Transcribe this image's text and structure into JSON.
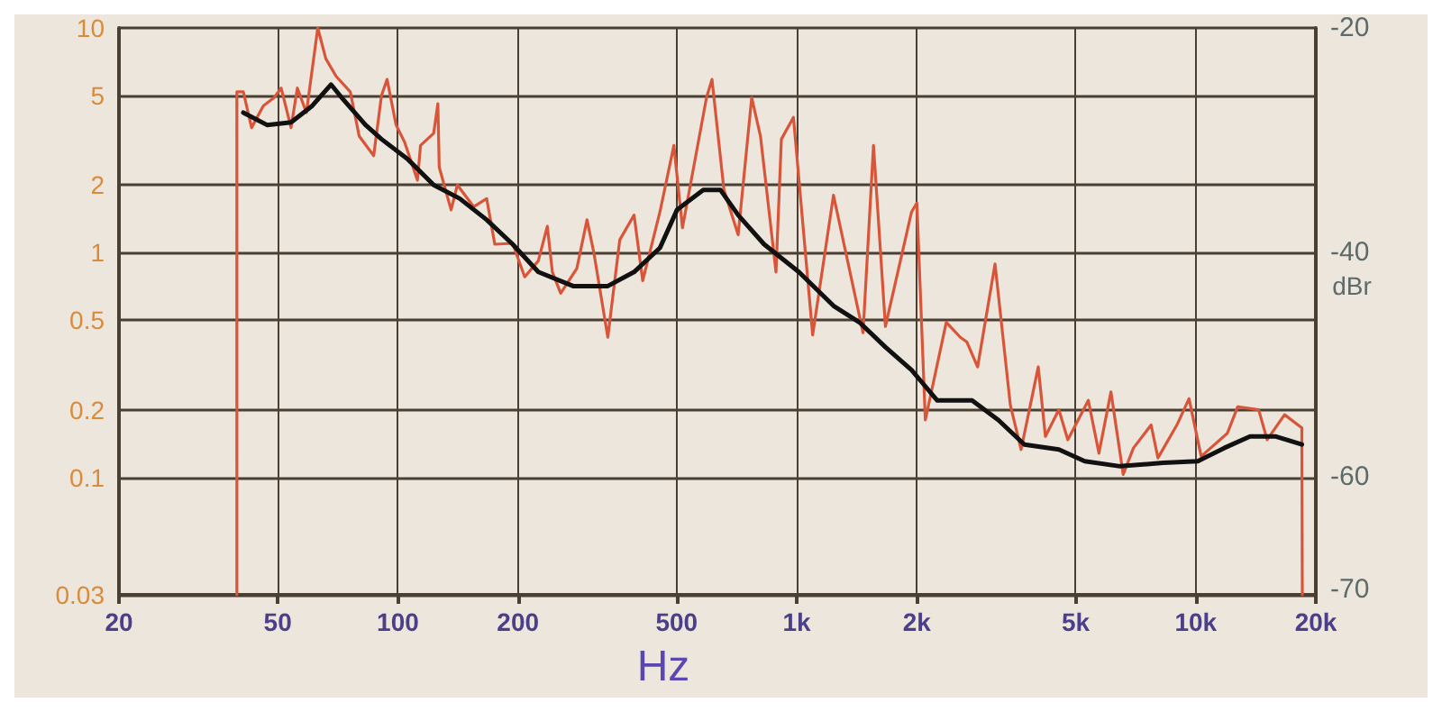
{
  "chart_data": {
    "type": "line",
    "xlabel": "Hz",
    "y2label": "dBr",
    "log": "xy",
    "grid": true,
    "marker": "none",
    "line_style": "solid",
    "xlim": [
      20,
      20000
    ],
    "xticks": [
      20,
      50,
      100,
      200,
      500,
      {
        "value": 1000,
        "label": "1k"
      },
      {
        "value": 2000,
        "label": "2k"
      },
      {
        "value": 5000,
        "label": "5k"
      },
      {
        "value": 10000,
        "label": "10k"
      },
      {
        "value": 20000,
        "label": "20k"
      }
    ],
    "ylim": [
      0.03,
      10
    ],
    "yticks": [
      0.03,
      0.1,
      0.2,
      0.5,
      1,
      2,
      5,
      10
    ],
    "y2lim": [
      -70.5,
      -20
    ],
    "y2ticks": [
      -70,
      -60,
      -40,
      -20
    ],
    "series": [
      {
        "color": "#d9553a",
        "x": [
          39.5,
          39.5,
          41,
          43,
          46,
          49,
          51,
          54,
          56,
          59,
          63,
          66,
          70,
          76,
          80,
          87,
          91,
          94,
          99,
          104,
          112,
          114,
          123,
          126,
          127,
          136,
          141,
          155,
          167,
          175,
          194,
          208,
          225,
          237,
          244,
          256,
          281,
          298,
          310,
          336,
          360,
          391,
          411,
          454,
          492,
          517,
          594,
          613,
          657,
          713,
          771,
          811,
          887,
          915,
          981,
          1096,
          1236,
          1466,
          1557,
          1668,
          1940,
          2000,
          2100,
          2370,
          2570,
          2670,
          2840,
          3140,
          3430,
          3650,
          4030,
          4200,
          4540,
          4780,
          5380,
          5720,
          6130,
          6580,
          6980,
          7730,
          8040,
          8970,
          9620,
          10320,
          12000,
          12740,
          14380,
          15100,
          16700,
          18450,
          18500
        ],
        "values": [
          0.03,
          5.2,
          5.2,
          3.6,
          4.5,
          4.9,
          5.4,
          3.6,
          5.4,
          4.2,
          10,
          7.3,
          6.1,
          5.2,
          3.3,
          2.7,
          5.0,
          5.9,
          3.7,
          3.1,
          2.1,
          3.0,
          3.4,
          4.6,
          2.4,
          1.55,
          2.0,
          1.6,
          1.74,
          1.09,
          1.1,
          0.78,
          0.92,
          1.31,
          0.82,
          0.66,
          0.85,
          1.4,
          1.0,
          0.42,
          1.14,
          1.47,
          0.75,
          1.52,
          3.0,
          1.29,
          4.9,
          5.9,
          1.9,
          1.2,
          4.9,
          3.3,
          0.82,
          3.2,
          4.0,
          0.43,
          1.8,
          0.44,
          3.0,
          0.47,
          1.52,
          1.66,
          0.18,
          0.49,
          0.42,
          0.4,
          0.31,
          0.89,
          0.21,
          0.133,
          0.31,
          0.152,
          0.2,
          0.147,
          0.22,
          0.128,
          0.24,
          0.103,
          0.135,
          0.171,
          0.122,
          0.171,
          0.224,
          0.124,
          0.157,
          0.206,
          0.2,
          0.147,
          0.19,
          0.166,
          0.03
        ]
      },
      {
        "color": "#111111",
        "x": [
          41,
          47,
          54,
          61,
          68,
          73,
          83,
          91,
          106,
          123,
          143,
          167,
          194,
          225,
          275,
          336,
          391,
          454,
          501,
          583,
          644,
          713,
          828,
          1012,
          1236,
          1435,
          1668,
          1940,
          2250,
          2750,
          3200,
          3720,
          4540,
          5270,
          6460,
          8280,
          10120,
          11780,
          13680,
          15890,
          18450
        ],
        "values": [
          4.2,
          3.7,
          3.8,
          4.5,
          5.6,
          4.8,
          3.7,
          3.2,
          2.6,
          2.0,
          1.74,
          1.4,
          1.09,
          0.82,
          0.71,
          0.71,
          0.82,
          1.05,
          1.55,
          1.9,
          1.9,
          1.47,
          1.09,
          0.82,
          0.58,
          0.49,
          0.38,
          0.3,
          0.22,
          0.22,
          0.18,
          0.14,
          0.133,
          0.118,
          0.112,
          0.116,
          0.118,
          0.135,
          0.152,
          0.152,
          0.14
        ]
      }
    ]
  }
}
